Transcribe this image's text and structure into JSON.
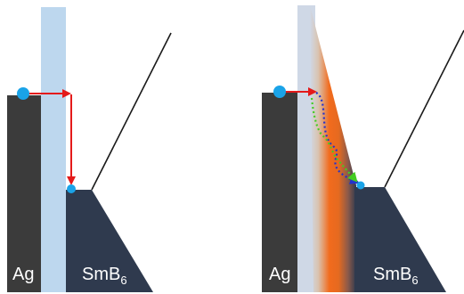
{
  "panels": [
    {
      "id": "left",
      "metal_label": "Ag",
      "material_label": "SmB",
      "material_subscript": "6"
    },
    {
      "id": "right",
      "metal_label": "Ag",
      "material_label": "SmB",
      "material_subscript": "6"
    }
  ],
  "colors": {
    "metal_block": "#3b3b3b",
    "smb6_block": "#2f3a4e",
    "barrier": "#bdd7ee",
    "gradient_orange": "#f26b1d",
    "dot": "#1aa3e8",
    "arrow_red": "#e41a1a",
    "arrow_blue": "#2233cc",
    "arrow_green": "#44cc22",
    "line": "#1a1a1a"
  }
}
